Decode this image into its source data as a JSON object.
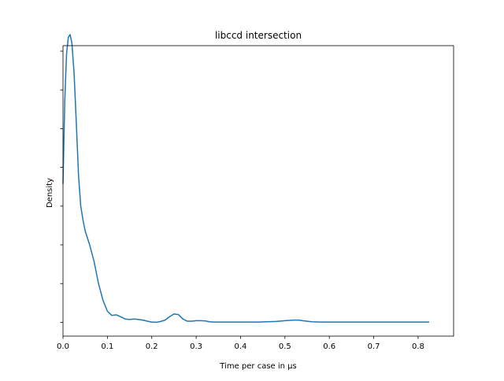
{
  "chart_data": {
    "type": "line",
    "title": "libccd intersection",
    "xlabel": "Time per case in µs",
    "ylabel": "Density",
    "xlim": [
      0,
      0.88
    ],
    "ylim": [
      -0.05,
      1.0
    ],
    "x_ticks": [
      "0.0",
      "0.1",
      "0.2",
      "0.3",
      "0.4",
      "0.5",
      "0.6",
      "0.7",
      "0.8"
    ],
    "y_tick_values": [
      0.0,
      0.14,
      0.28,
      0.42,
      0.56,
      0.7,
      0.84,
      0.98
    ],
    "grid": false,
    "legend": "none",
    "line_color": "#1f77b4",
    "series": [
      {
        "x": [
          0.0,
          0.004,
          0.008,
          0.012,
          0.016,
          0.02,
          0.025,
          0.03,
          0.035,
          0.04,
          0.045,
          0.05,
          0.06,
          0.07,
          0.08,
          0.09,
          0.1,
          0.11,
          0.12,
          0.13,
          0.14,
          0.15,
          0.16,
          0.17,
          0.18,
          0.19,
          0.2,
          0.21,
          0.22,
          0.23,
          0.24,
          0.25,
          0.26,
          0.27,
          0.28,
          0.29,
          0.3,
          0.31,
          0.32,
          0.33,
          0.34,
          0.36,
          0.38,
          0.4,
          0.42,
          0.44,
          0.46,
          0.48,
          0.5,
          0.52,
          0.53,
          0.54,
          0.56,
          0.58,
          0.6,
          0.65,
          0.7,
          0.75,
          0.8,
          0.825
        ],
        "y": [
          0.5,
          0.8,
          0.97,
          1.03,
          1.04,
          1.01,
          0.9,
          0.72,
          0.53,
          0.42,
          0.37,
          0.33,
          0.28,
          0.22,
          0.14,
          0.08,
          0.04,
          0.025,
          0.027,
          0.02,
          0.012,
          0.01,
          0.012,
          0.01,
          0.008,
          0.004,
          0.001,
          0.0,
          0.003,
          0.008,
          0.02,
          0.03,
          0.028,
          0.012,
          0.004,
          0.004,
          0.006,
          0.006,
          0.005,
          0.002,
          0.001,
          0.001,
          0.001,
          0.001,
          0.001,
          0.001,
          0.002,
          0.003,
          0.006,
          0.008,
          0.008,
          0.006,
          0.002,
          0.001,
          0.001,
          0.001,
          0.001,
          0.001,
          0.001,
          0.001
        ]
      }
    ]
  }
}
